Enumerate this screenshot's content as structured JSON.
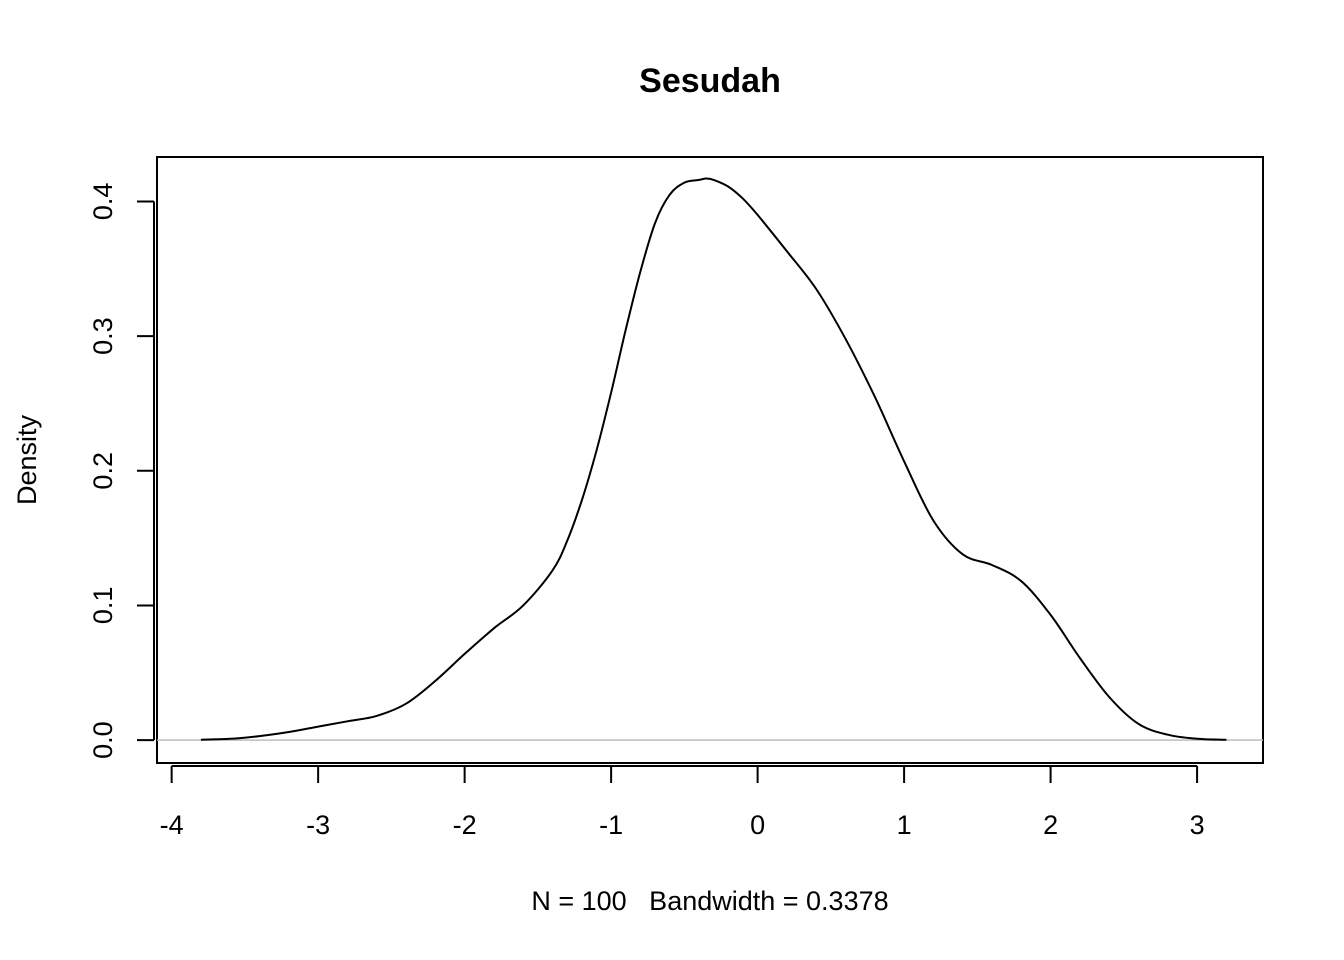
{
  "chart_data": {
    "type": "line",
    "title": "Sesudah",
    "xlabel": "N = 100   Bandwidth = 0.3378",
    "ylabel": "Density",
    "xlim": [
      -4.1,
      3.45
    ],
    "ylim": [
      -0.017,
      0.433
    ],
    "x_ticks": [
      -4,
      -3,
      -2,
      -1,
      0,
      1,
      2,
      3
    ],
    "x_tick_labels": [
      "-4",
      "-3",
      "-2",
      "-1",
      "0",
      "1",
      "2",
      "3"
    ],
    "y_ticks": [
      0.0,
      0.1,
      0.2,
      0.3,
      0.4
    ],
    "y_tick_labels": [
      "0.0",
      "0.1",
      "0.2",
      "0.3",
      "0.4"
    ],
    "grid": false,
    "baseline": 0,
    "series": [
      {
        "x": [
          -3.8,
          -3.6,
          -3.4,
          -3.2,
          -3.0,
          -2.8,
          -2.6,
          -2.4,
          -2.2,
          -2.0,
          -1.8,
          -1.6,
          -1.4,
          -1.3,
          -1.2,
          -1.1,
          -1.0,
          -0.9,
          -0.8,
          -0.7,
          -0.6,
          -0.5,
          -0.4,
          -0.35,
          -0.3,
          -0.2,
          -0.1,
          0.0,
          0.2,
          0.4,
          0.6,
          0.8,
          1.0,
          1.2,
          1.4,
          1.6,
          1.8,
          2.0,
          2.2,
          2.4,
          2.6,
          2.8,
          3.0,
          3.2
        ],
        "y": [
          0.0003,
          0.001,
          0.003,
          0.006,
          0.01,
          0.014,
          0.018,
          0.027,
          0.044,
          0.064,
          0.083,
          0.1,
          0.126,
          0.148,
          0.178,
          0.215,
          0.258,
          0.305,
          0.348,
          0.384,
          0.405,
          0.414,
          0.416,
          0.417,
          0.416,
          0.411,
          0.402,
          0.39,
          0.363,
          0.335,
          0.298,
          0.255,
          0.207,
          0.163,
          0.138,
          0.13,
          0.118,
          0.093,
          0.061,
          0.032,
          0.012,
          0.004,
          0.001,
          0.0002
        ]
      }
    ]
  }
}
